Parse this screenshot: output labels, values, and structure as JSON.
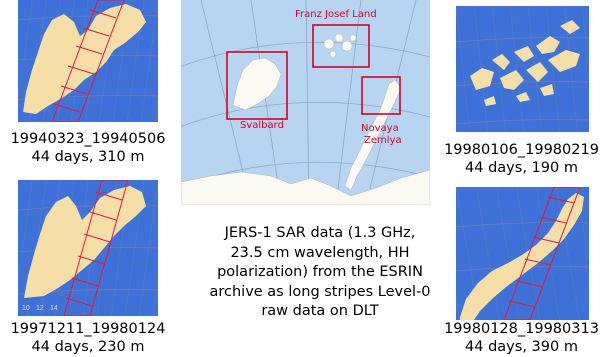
{
  "panels": [
    {
      "date_range": "19940323_19940506",
      "details": "44 days, 310 m"
    },
    {
      "date_range": "19971211_19980124",
      "details": "44 days, 230 m"
    },
    {
      "date_range": "19980106_19980219",
      "details": "44 days, 190 m"
    },
    {
      "date_range": "19980128_19980313",
      "details": "44 days, 390 m"
    }
  ],
  "overview_map": {
    "labels": {
      "franz_josef": "Franz Josef Land",
      "svalbard": "Svalbard",
      "novaya_1": "Novaya",
      "novaya_2": "Zemlya"
    },
    "colors": {
      "sea": "#b7d4f0",
      "land": "#fbfaf2",
      "box": "#d80028"
    }
  },
  "description": {
    "lines": [
      "JERS-1 SAR data (1.3 GHz,",
      "23.5 cm wavelength, HH",
      "polarization) from the ESRIN",
      "archive as long stripes Level-0",
      "raw data on DLT"
    ]
  },
  "colors": {
    "sea_blue": "#3e72d8",
    "land": "#f6dfa7",
    "stripe": "#e8183a",
    "grid": "#7d8aa8"
  }
}
